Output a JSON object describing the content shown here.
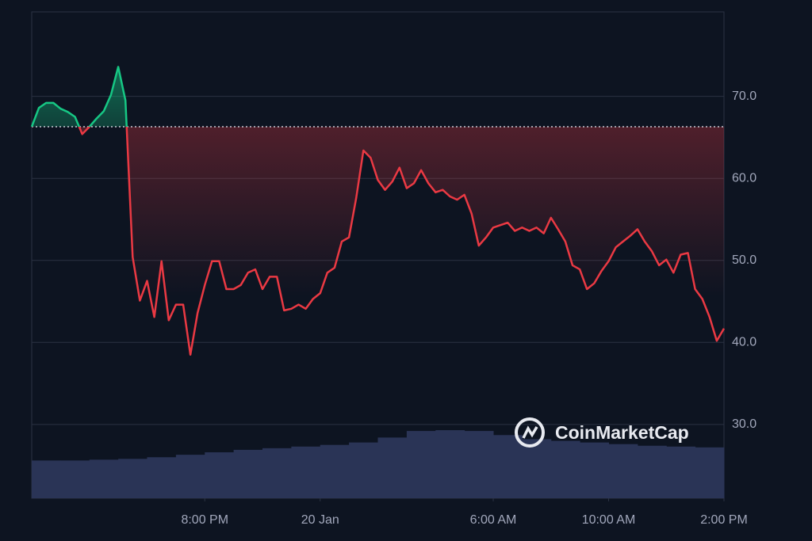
{
  "chart_data": {
    "type": "line",
    "watermark": "CoinMarketCap",
    "x": [
      0,
      0.25,
      0.5,
      0.75,
      1,
      1.25,
      1.5,
      1.75,
      2,
      2.25,
      2.5,
      2.75,
      3,
      3.25,
      3.5,
      3.75,
      4,
      4.25,
      4.5,
      4.75,
      5,
      5.25,
      5.5,
      5.75,
      6,
      6.25,
      6.5,
      6.75,
      7,
      7.25,
      7.5,
      7.75,
      8,
      8.25,
      8.5,
      8.75,
      9,
      9.25,
      9.5,
      9.75,
      10,
      10.25,
      10.5,
      10.75,
      11,
      11.25,
      11.5,
      11.75,
      12,
      12.25,
      12.5,
      12.75,
      13,
      13.25,
      13.5,
      13.75,
      14,
      14.25,
      14.5,
      14.75,
      15,
      15.25,
      15.5,
      15.75,
      16,
      16.25,
      16.5,
      16.75,
      17,
      17.25,
      17.5,
      17.75,
      18,
      18.25,
      18.5,
      18.75,
      19,
      19.25,
      19.5,
      19.75,
      20,
      20.25,
      20.5,
      20.75,
      21,
      21.25,
      21.5,
      21.75,
      22,
      22.25,
      22.5,
      22.75,
      23,
      23.25,
      23.5,
      23.75,
      24
    ],
    "series": [
      {
        "values": [
          66.3,
          68.6,
          69.2,
          69.2,
          68.5,
          68.1,
          67.5,
          65.4,
          66.3,
          67.3,
          68.2,
          70.2,
          73.6,
          69.5,
          50.4,
          45.1,
          47.5,
          43.1,
          49.9,
          42.7,
          44.6,
          44.6,
          38.5,
          43.6,
          47.0,
          49.9,
          49.9,
          46.5,
          46.5,
          47.0,
          48.5,
          48.9,
          46.5,
          48.0,
          48.0,
          43.9,
          44.1,
          44.6,
          44.1,
          45.3,
          46.0,
          48.5,
          49.1,
          52.3,
          52.8,
          57.6,
          63.4,
          62.5,
          59.8,
          58.6,
          59.6,
          61.3,
          58.8,
          59.4,
          61.0,
          59.4,
          58.3,
          58.6,
          57.8,
          57.4,
          58.0,
          55.7,
          51.8,
          52.8,
          54.0,
          54.3,
          54.6,
          53.6,
          54.0,
          53.6,
          54.0,
          53.3,
          55.2,
          53.8,
          52.3,
          49.4,
          48.9,
          46.5,
          47.2,
          48.7,
          49.9,
          51.6,
          52.3,
          53.0,
          53.8,
          52.3,
          51.1,
          49.4,
          50.1,
          48.5,
          50.7,
          50.9,
          46.5,
          45.3,
          43.1,
          40.2,
          41.7
        ]
      }
    ],
    "baseline": 66.3,
    "up_color": "#16c784",
    "down_color": "#ea3943",
    "volume": {
      "type": "bar",
      "color": "#2a3456",
      "values": [
        25.6,
        25.6,
        25.7,
        25.8,
        26.0,
        26.3,
        26.6,
        26.9,
        27.1,
        27.3,
        27.5,
        27.8,
        28.4,
        29.2,
        29.3,
        29.2,
        28.7,
        28.2,
        28.0,
        27.8,
        27.6,
        27.4,
        27.3,
        27.2
      ]
    },
    "xlim": [
      0,
      24
    ],
    "xticks": [
      {
        "value": 6,
        "label": "8:00 PM"
      },
      {
        "value": 10,
        "label": "20 Jan"
      },
      {
        "value": 16,
        "label": "6:00 AM"
      },
      {
        "value": 20,
        "label": "10:00 AM"
      },
      {
        "value": 24,
        "label": "2:00 PM"
      }
    ],
    "ylim": [
      21,
      80.3
    ],
    "yticks": [
      {
        "value": 30,
        "label": "30.0"
      },
      {
        "value": 40,
        "label": "40.0"
      },
      {
        "value": 50,
        "label": "50.0"
      },
      {
        "value": 60,
        "label": "60.0"
      },
      {
        "value": 70,
        "label": "70.0"
      }
    ],
    "grid": true
  }
}
